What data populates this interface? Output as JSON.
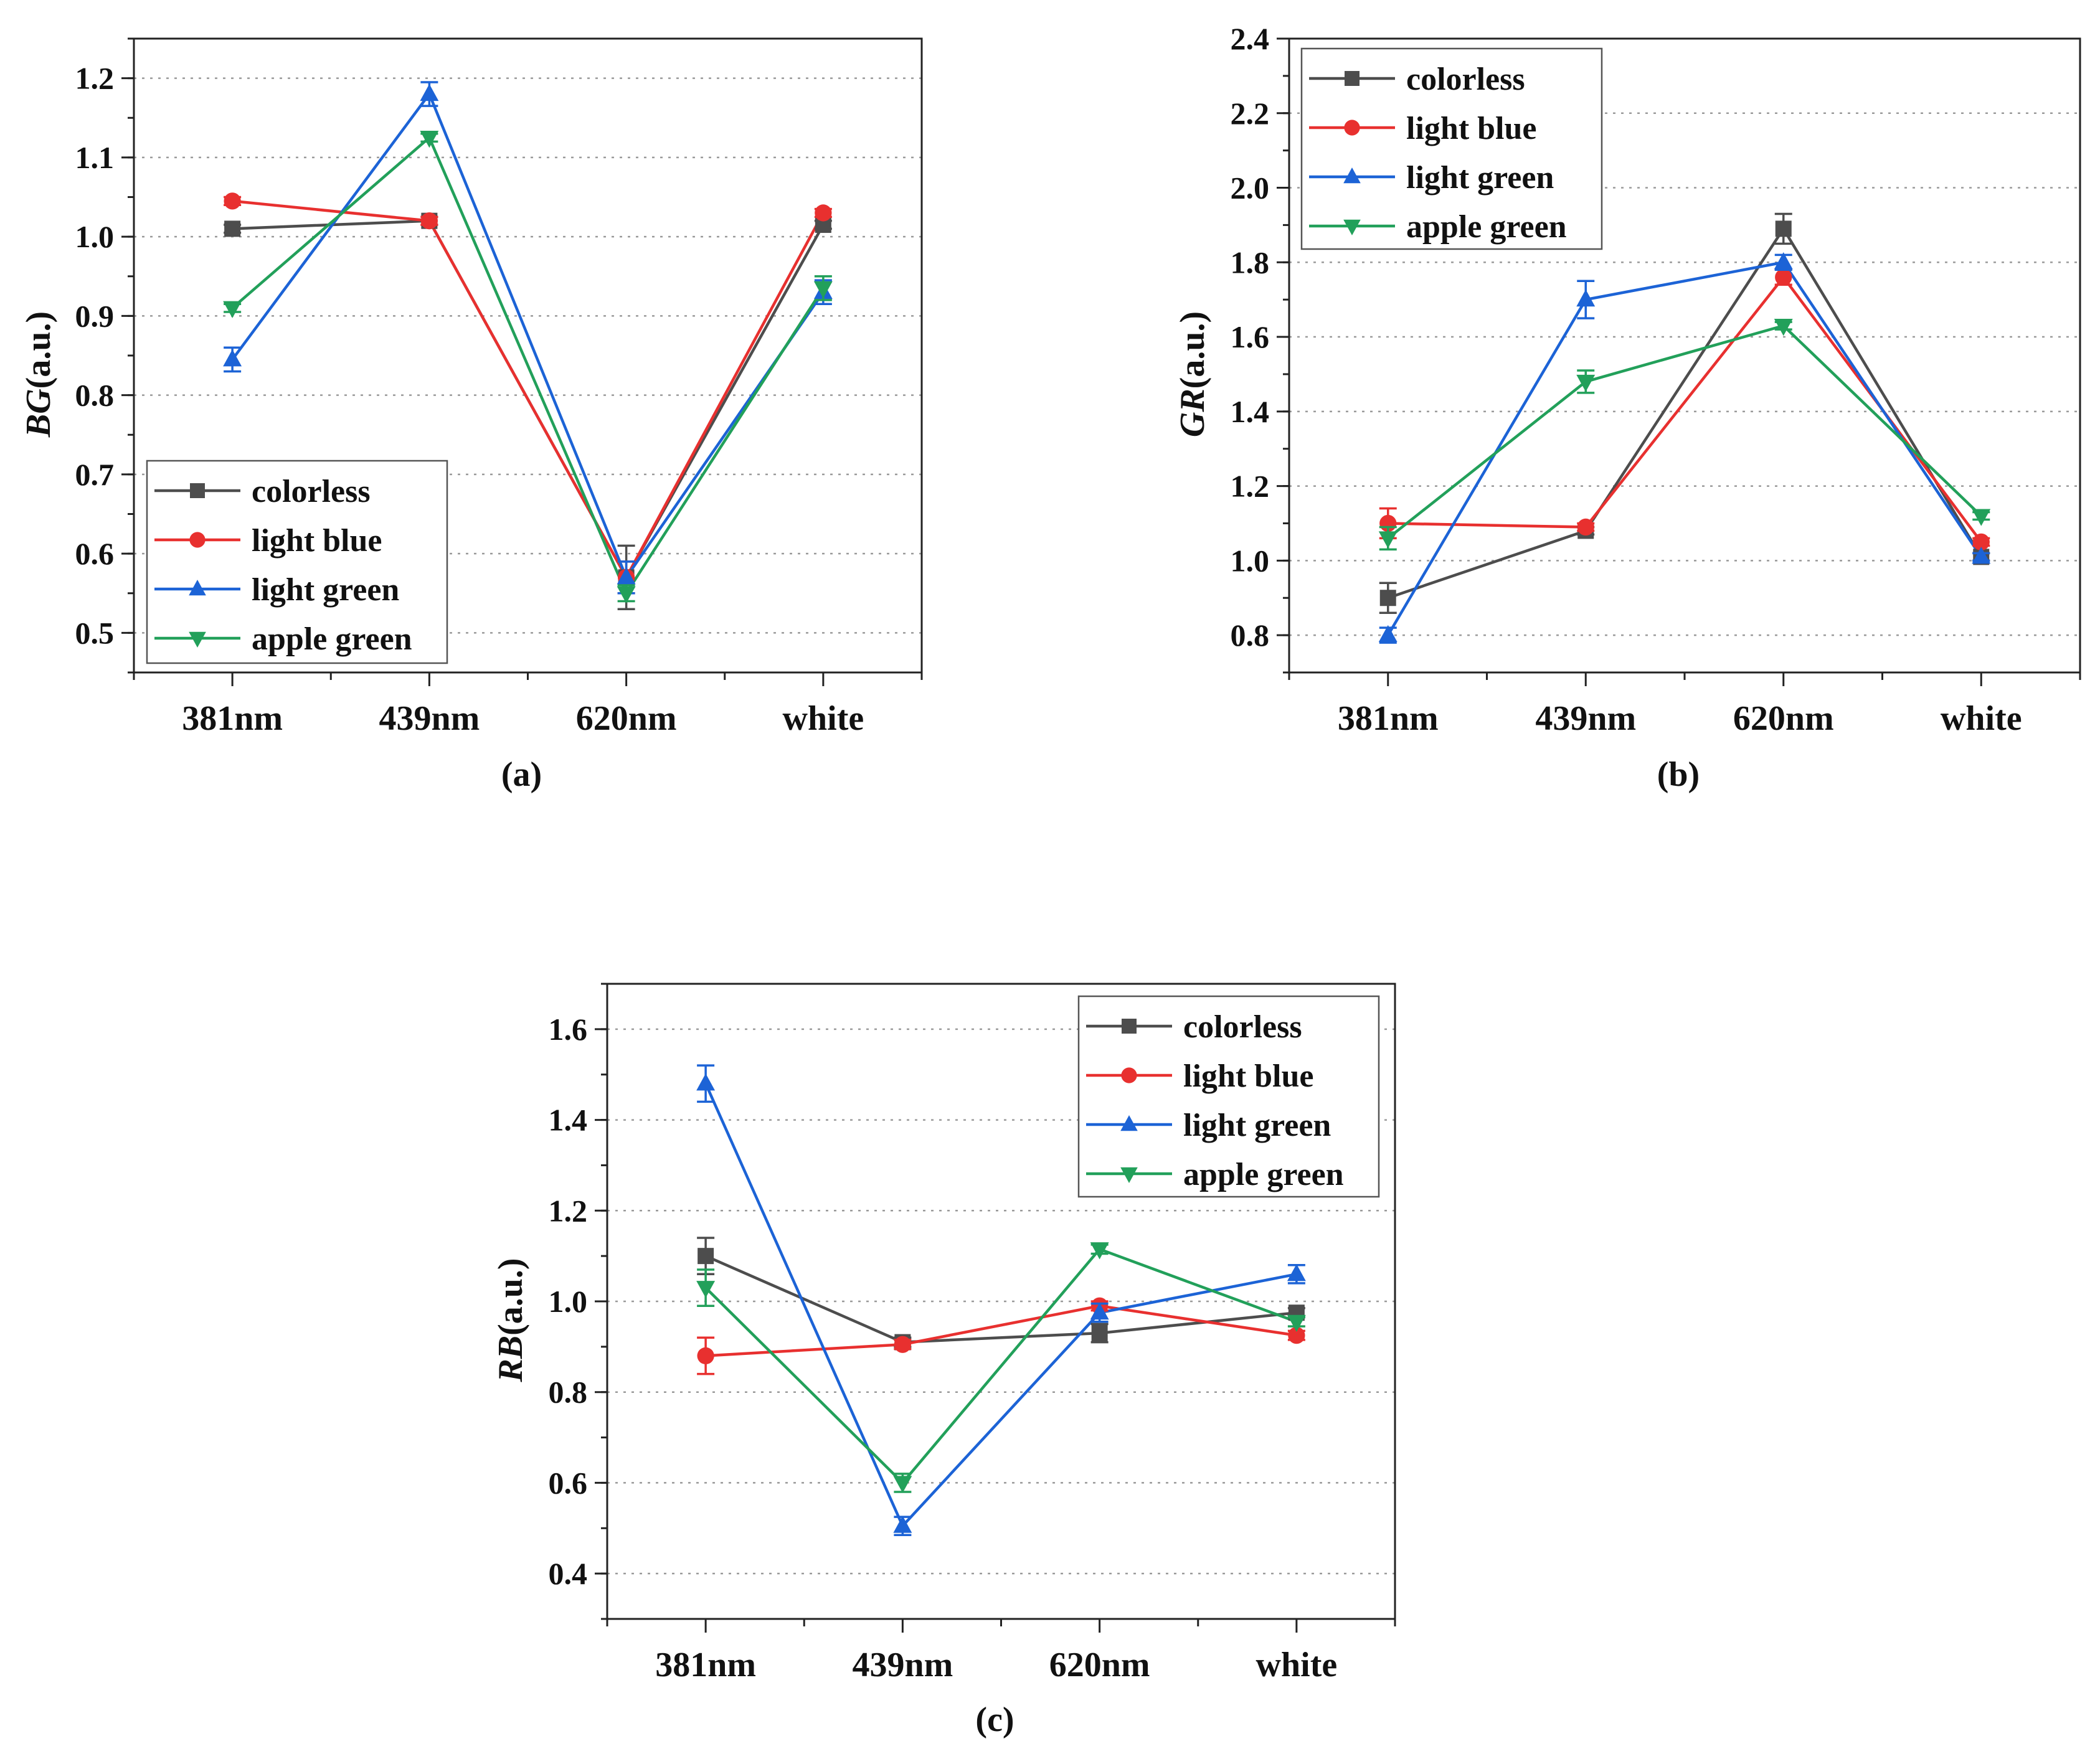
{
  "chart_data": [
    {
      "type": "line",
      "panel_label": "(a)",
      "ylabel_italic": "BG",
      "ylabel_unit": "(a.u.)",
      "categories": [
        "381nm",
        "439nm",
        "620nm",
        "white"
      ],
      "ylim": [
        0.45,
        1.25
      ],
      "ytick_step": 0.1,
      "ytick_labels": [
        "0.5",
        "0.6",
        "0.7",
        "0.8",
        "0.9",
        "1.0",
        "1.1",
        "1.2"
      ],
      "grid": true,
      "legend_position": "bottom-left",
      "series": [
        {
          "name": "colorless",
          "color": "#4d4d4d",
          "marker": "square",
          "values": [
            1.01,
            1.02,
            0.57,
            1.015
          ],
          "errors": [
            0.005,
            0.005,
            0.04,
            0.005
          ]
        },
        {
          "name": "light blue",
          "color": "#e8302f",
          "marker": "circle",
          "values": [
            1.045,
            1.02,
            0.57,
            1.03
          ],
          "errors": [
            0.005,
            0.005,
            0.02,
            0.005
          ]
        },
        {
          "name": "light green",
          "color": "#1c63d6",
          "marker": "triangle-up",
          "values": [
            0.845,
            1.18,
            0.57,
            0.93
          ],
          "errors": [
            0.015,
            0.015,
            0.02,
            0.015
          ]
        },
        {
          "name": "apple green",
          "color": "#22a05a",
          "marker": "triangle-down",
          "values": [
            0.91,
            1.125,
            0.55,
            0.935
          ],
          "errors": [
            0.005,
            0.005,
            0.01,
            0.015
          ]
        }
      ]
    },
    {
      "type": "line",
      "panel_label": "(b)",
      "ylabel_italic": "GR",
      "ylabel_unit": "(a.u.)",
      "categories": [
        "381nm",
        "439nm",
        "620nm",
        "white"
      ],
      "ylim": [
        0.7,
        2.4
      ],
      "ytick_step": 0.2,
      "ytick_labels": [
        "0.8",
        "1.0",
        "1.2",
        "1.4",
        "1.6",
        "1.8",
        "2.0",
        "2.2",
        "2.4"
      ],
      "grid": true,
      "legend_position": "top-left",
      "series": [
        {
          "name": "colorless",
          "color": "#4d4d4d",
          "marker": "square",
          "values": [
            0.9,
            1.08,
            1.89,
            1.01
          ],
          "errors": [
            0.04,
            0.01,
            0.04,
            0.01
          ]
        },
        {
          "name": "light blue",
          "color": "#e8302f",
          "marker": "circle",
          "values": [
            1.1,
            1.09,
            1.76,
            1.05
          ],
          "errors": [
            0.04,
            0.01,
            0.02,
            0.01
          ]
        },
        {
          "name": "light green",
          "color": "#1c63d6",
          "marker": "triangle-up",
          "values": [
            0.8,
            1.7,
            1.8,
            1.01
          ],
          "errors": [
            0.02,
            0.05,
            0.02,
            0.01
          ]
        },
        {
          "name": "apple green",
          "color": "#22a05a",
          "marker": "triangle-down",
          "values": [
            1.06,
            1.48,
            1.63,
            1.12
          ],
          "errors": [
            0.03,
            0.03,
            0.01,
            0.01
          ]
        }
      ]
    },
    {
      "type": "line",
      "panel_label": "(c)",
      "ylabel_italic": "RB",
      "ylabel_unit": "(a.u.)",
      "categories": [
        "381nm",
        "439nm",
        "620nm",
        "white"
      ],
      "ylim": [
        0.3,
        1.7
      ],
      "ytick_step": 0.2,
      "ytick_labels": [
        "0.4",
        "0.6",
        "0.8",
        "1.0",
        "1.2",
        "1.4",
        "1.6"
      ],
      "grid": true,
      "legend_position": "top-right",
      "series": [
        {
          "name": "colorless",
          "color": "#4d4d4d",
          "marker": "square",
          "values": [
            1.1,
            0.91,
            0.93,
            0.975
          ],
          "errors": [
            0.04,
            0.01,
            0.02,
            0.01
          ]
        },
        {
          "name": "light blue",
          "color": "#e8302f",
          "marker": "circle",
          "values": [
            0.88,
            0.905,
            0.99,
            0.925
          ],
          "errors": [
            0.04,
            0.01,
            0.01,
            0.01
          ]
        },
        {
          "name": "light green",
          "color": "#1c63d6",
          "marker": "triangle-up",
          "values": [
            1.48,
            0.505,
            0.975,
            1.06
          ],
          "errors": [
            0.04,
            0.02,
            0.02,
            0.02
          ]
        },
        {
          "name": "apple green",
          "color": "#22a05a",
          "marker": "triangle-down",
          "values": [
            1.03,
            0.6,
            1.115,
            0.955
          ],
          "errors": [
            0.04,
            0.02,
            0.01,
            0.01
          ]
        }
      ]
    }
  ]
}
